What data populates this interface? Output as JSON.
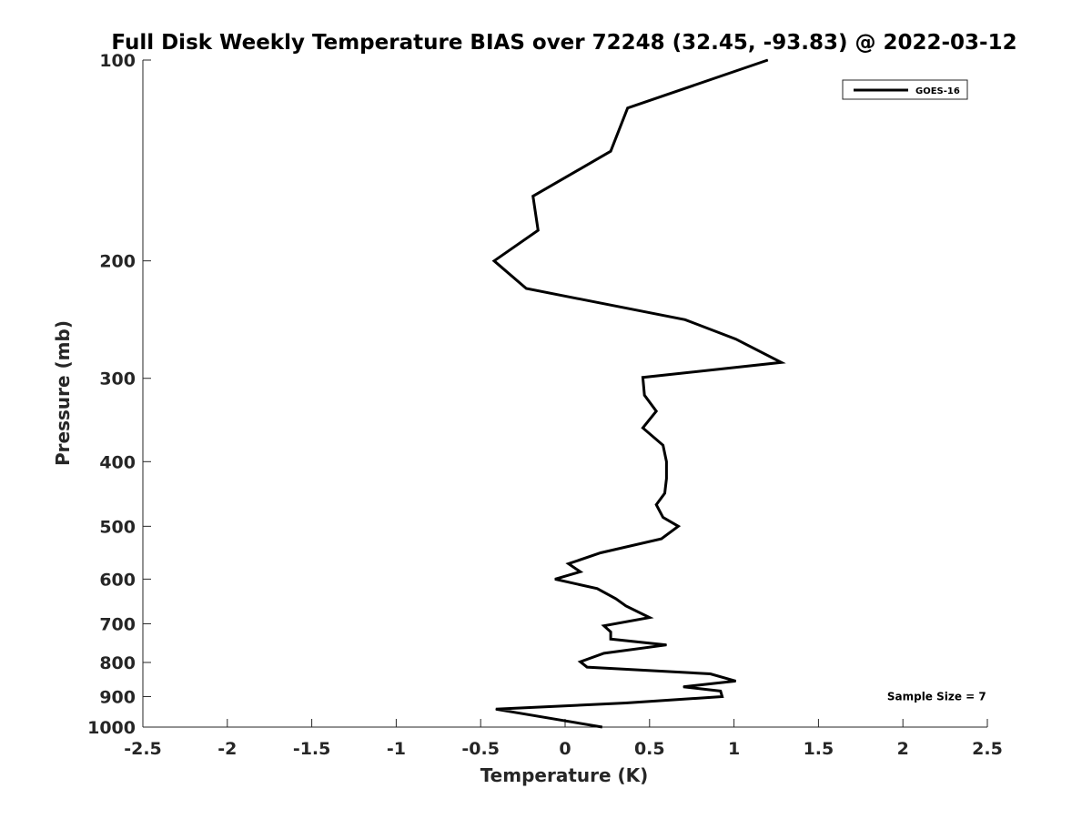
{
  "chart_data": {
    "type": "line",
    "title": "Full Disk Weekly Temperature BIAS over 72248 (32.45, -93.83) @ 2022-03-12",
    "xlabel": "Temperature (K)",
    "ylabel": "Pressure (mb)",
    "xlim": [
      -2.5,
      2.5
    ],
    "ylim": [
      100,
      1000
    ],
    "y_scale": "log",
    "y_reversed": true,
    "grid": false,
    "legend_position": "top-right",
    "x_ticks": [
      -2.5,
      -2,
      -1.5,
      -1,
      -0.5,
      0,
      0.5,
      1,
      1.5,
      2,
      2.5
    ],
    "x_tick_labels": [
      "-2.5",
      "-2",
      "-1.5",
      "-1",
      "-0.5",
      "0",
      "0.5",
      "1",
      "1.5",
      "2",
      "2.5"
    ],
    "y_ticks": [
      100,
      200,
      300,
      400,
      500,
      600,
      700,
      800,
      900,
      1000
    ],
    "y_tick_labels": [
      "100",
      "200",
      "300",
      "400",
      "500",
      "600",
      "700",
      "800",
      "900",
      "1000"
    ],
    "series": [
      {
        "name": "GOES-16",
        "color": "#000000",
        "points": [
          {
            "x": 1.2,
            "p": 100
          },
          {
            "x": 0.37,
            "p": 118
          },
          {
            "x": 0.27,
            "p": 137
          },
          {
            "x": -0.19,
            "p": 160
          },
          {
            "x": -0.16,
            "p": 180
          },
          {
            "x": -0.42,
            "p": 200
          },
          {
            "x": -0.23,
            "p": 220
          },
          {
            "x": 0.71,
            "p": 245
          },
          {
            "x": 1.01,
            "p": 262
          },
          {
            "x": 1.28,
            "p": 284
          },
          {
            "x": 0.46,
            "p": 299
          },
          {
            "x": 0.47,
            "p": 318
          },
          {
            "x": 0.54,
            "p": 336
          },
          {
            "x": 0.46,
            "p": 356
          },
          {
            "x": 0.58,
            "p": 378
          },
          {
            "x": 0.6,
            "p": 400
          },
          {
            "x": 0.6,
            "p": 424
          },
          {
            "x": 0.59,
            "p": 446
          },
          {
            "x": 0.54,
            "p": 464
          },
          {
            "x": 0.58,
            "p": 485
          },
          {
            "x": 0.67,
            "p": 500
          },
          {
            "x": 0.57,
            "p": 522
          },
          {
            "x": 0.21,
            "p": 548
          },
          {
            "x": 0.02,
            "p": 569
          },
          {
            "x": 0.09,
            "p": 585
          },
          {
            "x": -0.06,
            "p": 600
          },
          {
            "x": 0.19,
            "p": 620
          },
          {
            "x": 0.3,
            "p": 642
          },
          {
            "x": 0.36,
            "p": 658
          },
          {
            "x": 0.5,
            "p": 685
          },
          {
            "x": 0.23,
            "p": 705
          },
          {
            "x": 0.27,
            "p": 720
          },
          {
            "x": 0.27,
            "p": 738
          },
          {
            "x": 0.6,
            "p": 753
          },
          {
            "x": 0.23,
            "p": 775
          },
          {
            "x": 0.09,
            "p": 798
          },
          {
            "x": 0.13,
            "p": 813
          },
          {
            "x": 0.86,
            "p": 832
          },
          {
            "x": 1.01,
            "p": 853
          },
          {
            "x": 0.7,
            "p": 870
          },
          {
            "x": 0.92,
            "p": 883
          },
          {
            "x": 0.93,
            "p": 900
          },
          {
            "x": 0.36,
            "p": 920
          },
          {
            "x": -0.41,
            "p": 940
          },
          {
            "x": 0.22,
            "p": 1000
          }
        ]
      }
    ],
    "annotations": [
      {
        "text": "Sample Size = 7",
        "x": 2.2,
        "p": 900
      }
    ]
  }
}
